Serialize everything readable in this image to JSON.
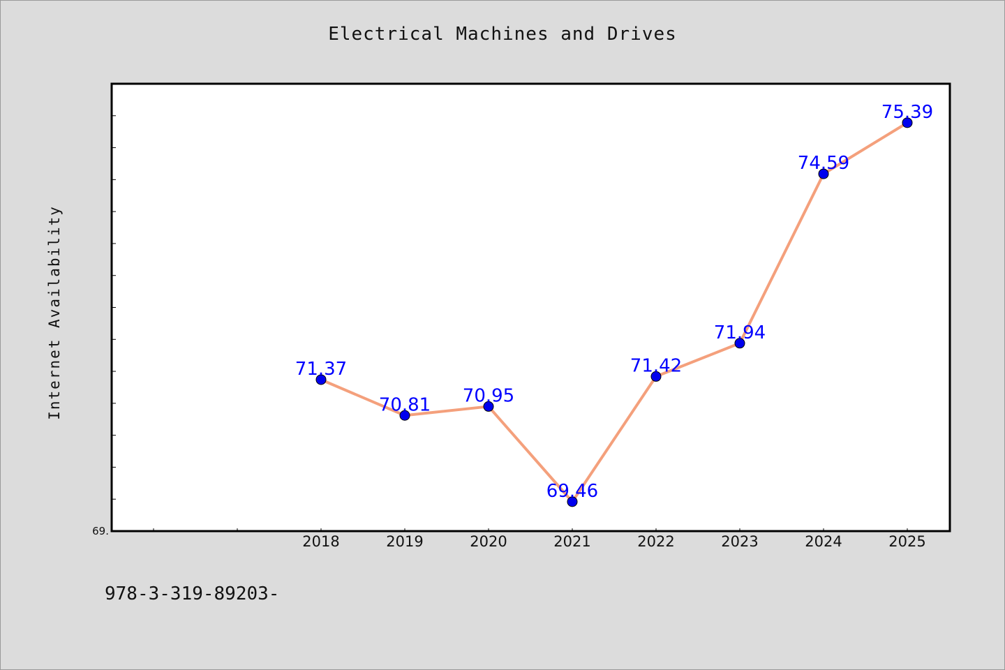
{
  "title": "Electrical Machines and Drives",
  "footnote": "978-3-319-89203-",
  "chart_data": {
    "type": "line",
    "title": "Electrical Machines and Drives",
    "xlabel": "",
    "ylabel": "Internet Availability",
    "categories": [
      "2018",
      "2019",
      "2020",
      "2021",
      "2022",
      "2023",
      "2024",
      "2025"
    ],
    "series": [
      {
        "values": [
          71.37,
          70.81,
          70.95,
          69.46,
          71.42,
          71.94,
          74.59,
          75.39
        ],
        "labels": [
          "71.37",
          "70.81",
          "70.95",
          "69.46",
          "71.42",
          "71.94",
          "74.59",
          "75.39"
        ]
      }
    ],
    "ylim": [
      69.0,
      76.0
    ],
    "ytick_labels": [
      {
        "value": 69.0,
        "label": "69."
      }
    ],
    "line_color": "#f4a07c",
    "marker_color": "#0000ee",
    "label_color": "#0000ff",
    "grid": false,
    "legend": "none"
  }
}
